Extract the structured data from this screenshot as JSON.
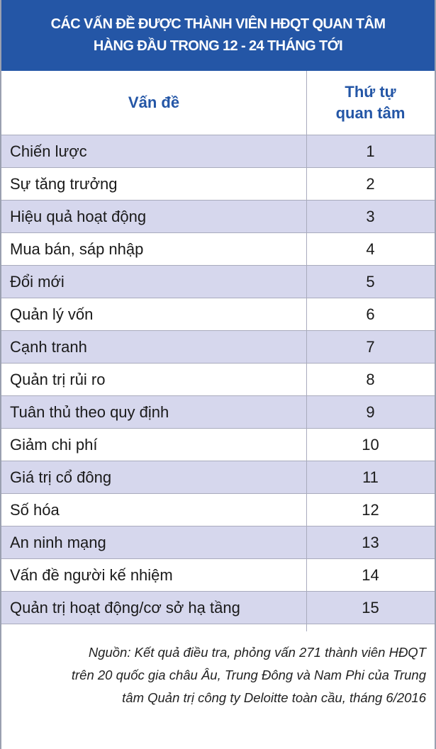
{
  "header": {
    "title_lines": [
      "CÁC VẤN ĐỀ ĐƯỢC THÀNH VIÊN HĐQT QUAN TÂM",
      "HÀNG ĐẦU TRONG 12 - 24 THÁNG TỚI"
    ]
  },
  "table": {
    "columns": [
      [
        "Vấn đề"
      ],
      [
        "Thứ tự",
        "quan tâm"
      ]
    ],
    "rows": [
      [
        "Chiến lược",
        1
      ],
      [
        "Sự tăng trưởng",
        2
      ],
      [
        "Hiệu quả hoạt động",
        3
      ],
      [
        "Mua bán, sáp nhập",
        4
      ],
      [
        "Đổi mới",
        5
      ],
      [
        "Quản lý vốn",
        6
      ],
      [
        "Cạnh tranh",
        7
      ],
      [
        "Quản trị rủi ro",
        8
      ],
      [
        "Tuân thủ theo quy định",
        9
      ],
      [
        "Giảm chi phí",
        10
      ],
      [
        "Giá trị cổ đông",
        11
      ],
      [
        "Số hóa",
        12
      ],
      [
        "An ninh mạng",
        13
      ],
      [
        "Vấn đề người kế nhiệm",
        14
      ],
      [
        "Quản trị hoạt động/cơ sở hạ tầng",
        15
      ]
    ]
  },
  "source": {
    "lines": [
      "Nguồn: Kết quả điều tra, phỏng vấn 271 thành viên HĐQT",
      "trên 20 quốc gia châu Âu, Trung Đông và Nam Phi của Trung",
      "tâm Quản trị công ty Deloitte toàn cầu, tháng 6/2016"
    ]
  }
}
